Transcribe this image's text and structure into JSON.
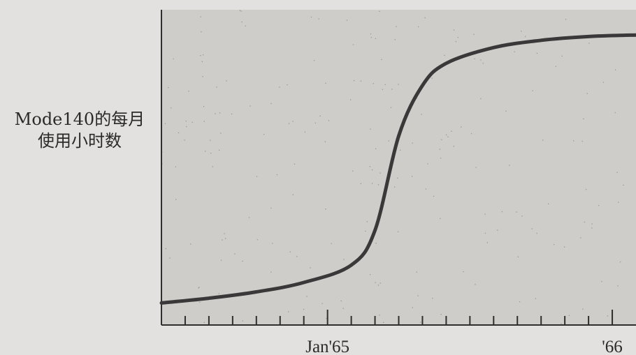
{
  "chart_data": {
    "type": "line",
    "title": "",
    "ylabel_lines": [
      "Mode140的每月",
      "使用小时数"
    ],
    "xlabel": "",
    "x_tick_labels": [
      {
        "label": "Jan'65",
        "month_index": 7
      },
      {
        "label": "'66",
        "month_index": 19
      }
    ],
    "x_months": [
      0,
      1,
      2,
      3,
      4,
      5,
      6,
      7,
      8,
      9,
      10,
      11,
      12,
      13,
      14,
      15,
      16,
      17,
      18,
      19,
      20
    ],
    "xlim": [
      0,
      20
    ],
    "ylim": [
      0,
      100
    ],
    "series": [
      {
        "points": [
          [
            0,
            7
          ],
          [
            2,
            8.5
          ],
          [
            4,
            10.5
          ],
          [
            6,
            13.5
          ],
          [
            8,
            19
          ],
          [
            9,
            30
          ],
          [
            10,
            60
          ],
          [
            11,
            76
          ],
          [
            12,
            83
          ],
          [
            14,
            88
          ],
          [
            16,
            90.3
          ],
          [
            18,
            91.5
          ],
          [
            20,
            92
          ]
        ]
      }
    ],
    "grid": false,
    "legend": "none"
  },
  "colors": {
    "background": "#e2e1df",
    "plot_area": "#cfcdca",
    "line": "#3a3838",
    "axis": "#2f2e2e"
  }
}
